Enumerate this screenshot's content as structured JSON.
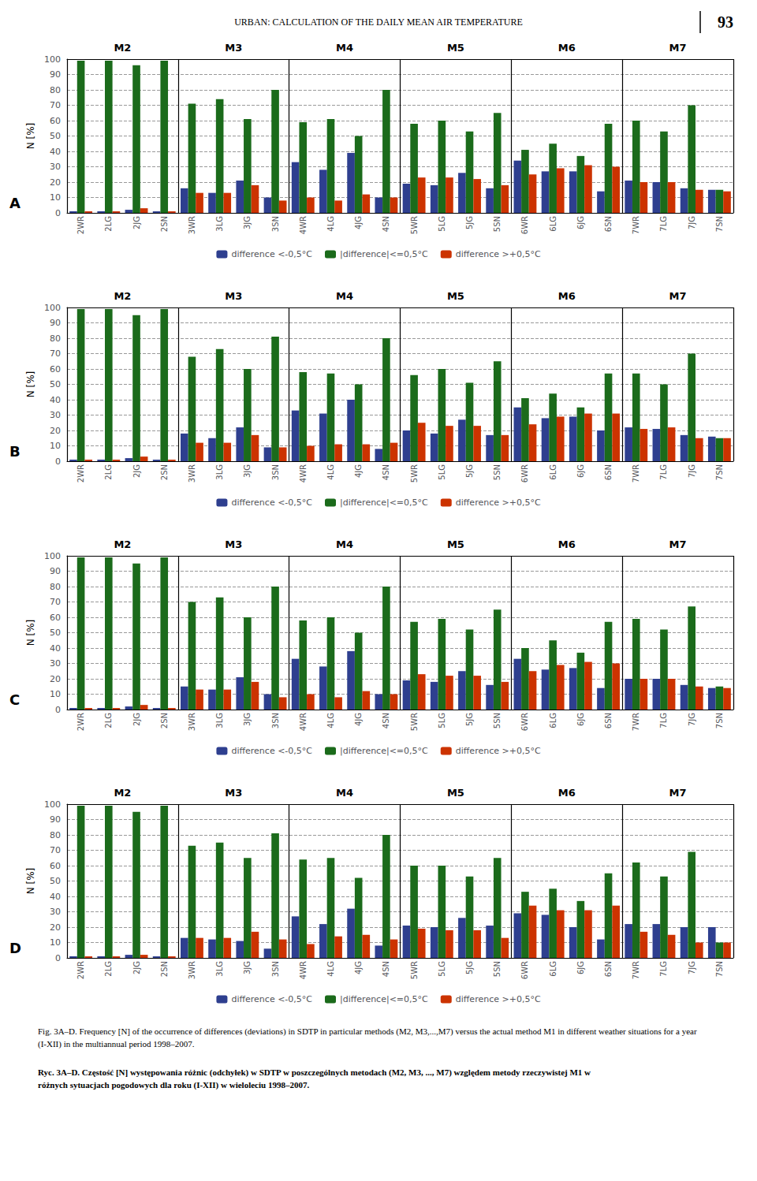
{
  "header": "URBAN: CALCULATION OF THE DAILY MEAN AIR TEMPERATURE",
  "page_number": "93",
  "captions": [
    "Fig. 3A–D. Frequency [N] of the occurrence of differences (deviations) in SDTP in particular methods (M2, M3,...,M7) versus the actual method M1 in different weather situations for a year (I-XII) in the multiannual period 1998–2007.",
    "Ryc. 3A–D. Częstość [N] występowania różnic (odchyłek) w SDTP w poszczególnych metodach (M2, M3, ..., M7) względem metody rzeczywistej M1 w różnych sytuacjach pogodowych dla roku (I-XII) w wieloleciu 1998–2007."
  ],
  "chart_data": [
    {
      "type": "bar",
      "title": "A",
      "ylabel": "N [%]",
      "annotations": [
        "M2",
        "M3",
        "M4",
        "M5",
        "M6",
        "M7"
      ],
      "categories": [
        "2WR",
        "2LG",
        "2JG",
        "2SN",
        "3WR",
        "3LG",
        "3JG",
        "3SN",
        "4WR",
        "4LG",
        "4JG",
        "4SN",
        "5WR",
        "5LG",
        "5JG",
        "5SN",
        "6WR",
        "6LG",
        "6JG",
        "6SN",
        "7WR",
        "7LG",
        "7JG",
        "7SN"
      ],
      "series": [
        {
          "name": "difference <-0,5°C",
          "color": "#2E3F8F",
          "values": [
            1,
            1,
            2,
            1,
            16,
            13,
            21,
            10,
            33,
            28,
            39,
            10,
            19,
            18,
            26,
            16,
            34,
            27,
            27,
            14,
            21,
            20,
            16,
            15
          ]
        },
        {
          "name": "|difference|<=0,5°C",
          "color": "#1B6B1B",
          "values": [
            99,
            99,
            96,
            99,
            71,
            74,
            61,
            80,
            59,
            61,
            50,
            80,
            58,
            60,
            53,
            65,
            41,
            45,
            37,
            58,
            60,
            53,
            70,
            15
          ]
        },
        {
          "name": "difference >+0,5°C",
          "color": "#CC3300",
          "values": [
            1,
            1,
            3,
            1,
            13,
            13,
            18,
            8,
            10,
            8,
            12,
            10,
            23,
            23,
            22,
            18,
            25,
            29,
            31,
            30,
            20,
            20,
            15,
            14
          ]
        }
      ],
      "ylim": [
        0,
        100
      ],
      "yticks": [
        0,
        10,
        20,
        30,
        40,
        50,
        60,
        70,
        80,
        90,
        100
      ],
      "grid": true,
      "legend": "bottom"
    },
    {
      "type": "bar",
      "title": "B",
      "ylabel": "N [%]",
      "annotations": [
        "M2",
        "M3",
        "M4",
        "M5",
        "M6",
        "M7"
      ],
      "categories": [
        "2WR",
        "2LG",
        "2JG",
        "2SN",
        "3WR",
        "3LG",
        "3JG",
        "3SN",
        "4WR",
        "4LG",
        "4JG",
        "4SN",
        "5WR",
        "5LG",
        "5JG",
        "5SN",
        "6WR",
        "6LG",
        "6JG",
        "6SN",
        "7WR",
        "7LG",
        "7JG",
        "7SN"
      ],
      "series": [
        {
          "name": "difference <-0,5°C",
          "color": "#2E3F8F",
          "values": [
            1,
            1,
            2,
            1,
            18,
            15,
            22,
            9,
            33,
            31,
            40,
            8,
            20,
            18,
            27,
            17,
            35,
            28,
            29,
            20,
            22,
            21,
            17,
            16
          ]
        },
        {
          "name": "|difference|<=0,5°C",
          "color": "#1B6B1B",
          "values": [
            99,
            99,
            95,
            99,
            68,
            73,
            60,
            81,
            58,
            57,
            50,
            80,
            56,
            60,
            51,
            65,
            41,
            44,
            35,
            57,
            57,
            50,
            70,
            15
          ]
        },
        {
          "name": "difference >+0,5°C",
          "color": "#CC3300",
          "values": [
            1,
            1,
            3,
            1,
            12,
            12,
            17,
            9,
            10,
            11,
            11,
            12,
            25,
            23,
            23,
            17,
            24,
            29,
            31,
            31,
            21,
            22,
            15,
            15
          ]
        }
      ],
      "ylim": [
        0,
        100
      ],
      "yticks": [
        0,
        10,
        20,
        30,
        40,
        50,
        60,
        70,
        80,
        90,
        100
      ],
      "grid": true,
      "legend": "bottom"
    },
    {
      "type": "bar",
      "title": "C",
      "ylabel": "N [%]",
      "annotations": [
        "M2",
        "M3",
        "M4",
        "M5",
        "M6",
        "M7"
      ],
      "categories": [
        "2WR",
        "2LG",
        "2JG",
        "2SN",
        "3WR",
        "3LG",
        "3JG",
        "3SN",
        "4WR",
        "4LG",
        "4JG",
        "4SN",
        "5WR",
        "5LG",
        "5JG",
        "5SN",
        "6WR",
        "6LG",
        "6JG",
        "6SN",
        "7WR",
        "7LG",
        "7JG",
        "7SN"
      ],
      "series": [
        {
          "name": "difference <-0,5°C",
          "color": "#2E3F8F",
          "values": [
            1,
            1,
            2,
            1,
            15,
            13,
            21,
            10,
            33,
            28,
            38,
            10,
            19,
            18,
            25,
            16,
            33,
            26,
            27,
            14,
            20,
            20,
            16,
            14
          ]
        },
        {
          "name": "|difference|<=0,5°C",
          "color": "#1B6B1B",
          "values": [
            99,
            99,
            95,
            99,
            70,
            73,
            60,
            80,
            58,
            60,
            50,
            80,
            57,
            59,
            52,
            65,
            40,
            45,
            37,
            57,
            59,
            52,
            67,
            15
          ]
        },
        {
          "name": "difference >+0,5°C",
          "color": "#CC3300",
          "values": [
            1,
            1,
            3,
            1,
            13,
            13,
            18,
            8,
            10,
            8,
            12,
            10,
            23,
            22,
            22,
            18,
            25,
            29,
            31,
            30,
            20,
            20,
            15,
            14
          ]
        }
      ],
      "ylim": [
        0,
        100
      ],
      "yticks": [
        0,
        10,
        20,
        30,
        40,
        50,
        60,
        70,
        80,
        90,
        100
      ],
      "grid": true,
      "legend": "bottom"
    },
    {
      "type": "bar",
      "title": "D",
      "ylabel": "N [%]",
      "annotations": [
        "M2",
        "M3",
        "M4",
        "M5",
        "M6",
        "M7"
      ],
      "categories": [
        "2WR",
        "2LG",
        "2JG",
        "2SN",
        "3WR",
        "3LG",
        "3JG",
        "3SN",
        "4WR",
        "4LG",
        "4JG",
        "4SN",
        "5WR",
        "5LG",
        "5JG",
        "5SN",
        "6WR",
        "6LG",
        "6JG",
        "6SN",
        "7WR",
        "7LG",
        "7JG",
        "7SN"
      ],
      "series": [
        {
          "name": "difference <-0,5°C",
          "color": "#2E3F8F",
          "values": [
            1,
            1,
            2,
            1,
            13,
            12,
            11,
            6,
            27,
            22,
            32,
            8,
            21,
            20,
            26,
            21,
            29,
            28,
            20,
            12,
            22,
            22,
            20,
            20
          ]
        },
        {
          "name": "|difference|<=0,5°C",
          "color": "#1B6B1B",
          "values": [
            99,
            99,
            95,
            99,
            73,
            75,
            65,
            81,
            64,
            65,
            52,
            80,
            60,
            60,
            53,
            65,
            43,
            45,
            37,
            55,
            62,
            53,
            69,
            10
          ]
        },
        {
          "name": "difference >+0,5°C",
          "color": "#CC3300",
          "values": [
            1,
            1,
            2,
            1,
            13,
            13,
            17,
            12,
            9,
            14,
            15,
            12,
            19,
            18,
            18,
            13,
            34,
            31,
            31,
            34,
            17,
            15,
            10,
            10
          ]
        }
      ],
      "ylim": [
        0,
        100
      ],
      "yticks": [
        0,
        10,
        20,
        30,
        40,
        50,
        60,
        70,
        80,
        90,
        100
      ],
      "grid": true,
      "legend": "bottom"
    }
  ]
}
